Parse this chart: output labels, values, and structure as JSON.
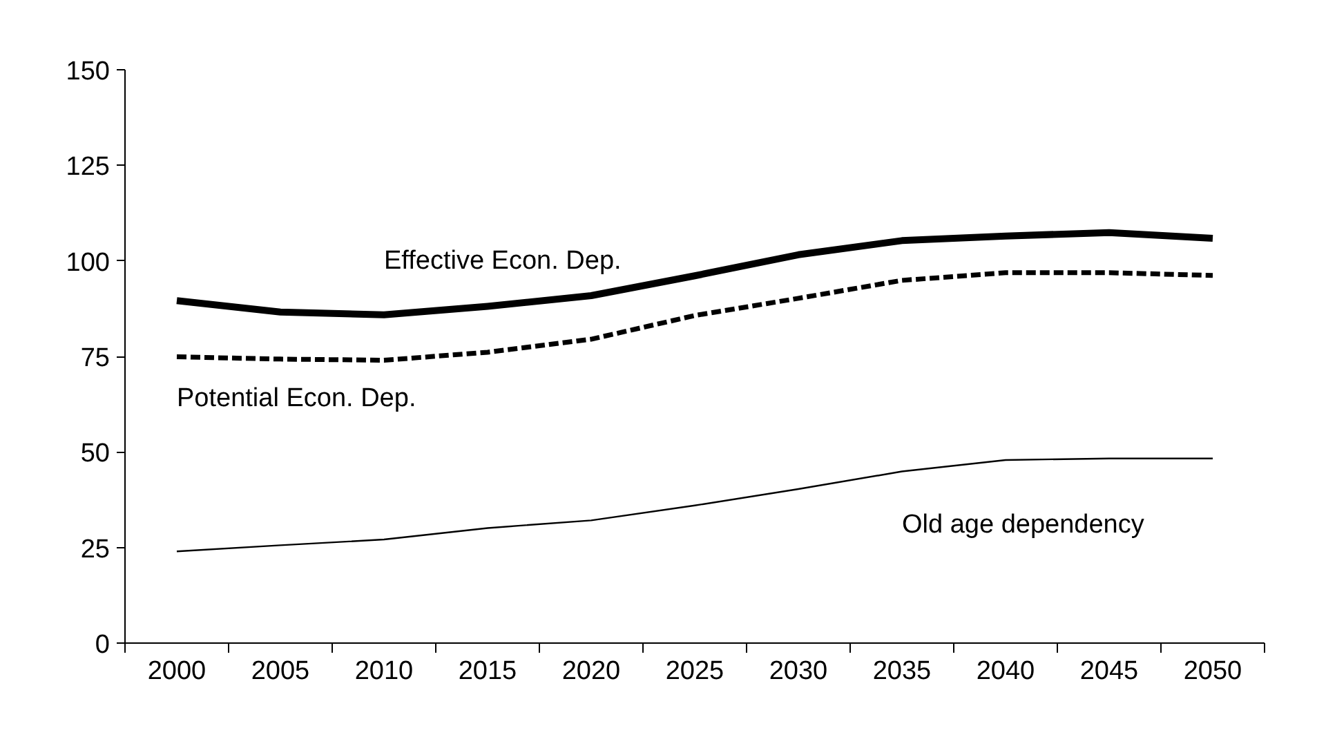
{
  "chart_data": {
    "type": "line",
    "categories": [
      "2000",
      "2005",
      "2010",
      "2015",
      "2020",
      "2025",
      "2030",
      "2035",
      "2040",
      "2045",
      "2050"
    ],
    "ylim": [
      0,
      150
    ],
    "yticks": [
      0,
      25,
      50,
      75,
      100,
      125,
      150
    ],
    "grid": false,
    "marker": "none",
    "series": [
      {
        "name": "Effective Econ. Dep.",
        "color": "#000000",
        "line_style": "solid",
        "values": [
          89.6,
          86.6,
          85.9,
          88.1,
          90.9,
          96.1,
          101.6,
          105.3,
          106.5,
          107.4,
          105.9
        ]
      },
      {
        "name": "Potential Econ. Dep.",
        "color": "#000000",
        "line_style": "dashed",
        "values": [
          74.9,
          74.3,
          74.0,
          76.1,
          79.5,
          85.7,
          90.2,
          94.9,
          96.9,
          96.9,
          96.2
        ]
      },
      {
        "name": "Old age dependency",
        "color": "#000000",
        "line_style": "solid",
        "values": [
          24.0,
          25.6,
          27.1,
          30.1,
          32.1,
          36.0,
          40.3,
          44.9,
          47.9,
          48.3,
          48.3
        ]
      }
    ]
  }
}
